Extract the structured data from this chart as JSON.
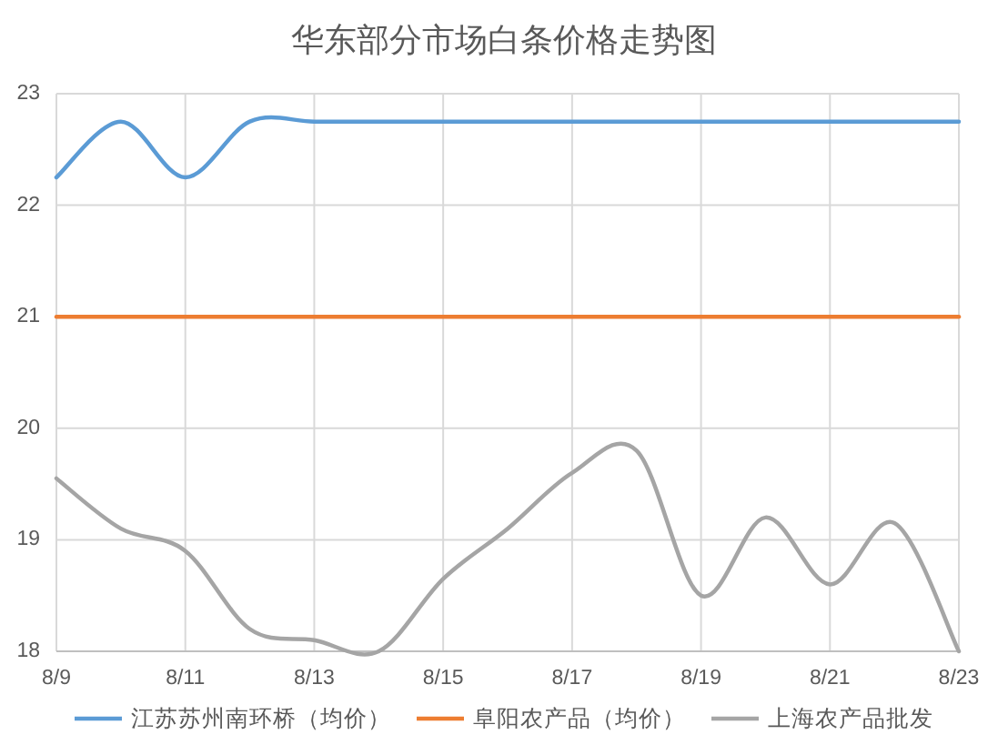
{
  "chart_data": {
    "type": "line",
    "title": "华东部分市场白条价格走势图",
    "categories": [
      "8/9",
      null,
      "8/11",
      null,
      "8/13",
      null,
      "8/15",
      null,
      "8/17",
      null,
      "8/19",
      null,
      "8/21",
      null,
      "8/23"
    ],
    "series": [
      {
        "name": "江苏苏州南环桥（均价）",
        "color": "#5b9bd5",
        "values": [
          22.25,
          22.75,
          22.25,
          22.75,
          22.75,
          22.75,
          22.75,
          22.75,
          22.75,
          22.75,
          22.75,
          22.75,
          22.75,
          22.75,
          22.75
        ]
      },
      {
        "name": "阜阳农产品（均价）",
        "color": "#ed7d31",
        "values": [
          21,
          21,
          21,
          21,
          21,
          21,
          21,
          21,
          21,
          21,
          21,
          21,
          21,
          21,
          21
        ]
      },
      {
        "name": "上海农产品批发",
        "color": "#a5a5a5",
        "values": [
          19.55,
          19.1,
          18.9,
          18.2,
          18.1,
          18.0,
          18.65,
          19.1,
          19.6,
          19.8,
          18.5,
          19.2,
          18.6,
          19.15,
          18.0
        ]
      }
    ],
    "ylim": [
      18,
      23
    ],
    "yticks": [
      18,
      19,
      20,
      21,
      22,
      23
    ],
    "grid": true,
    "legend": "bottom",
    "line_style": "solid",
    "marker": "none"
  }
}
